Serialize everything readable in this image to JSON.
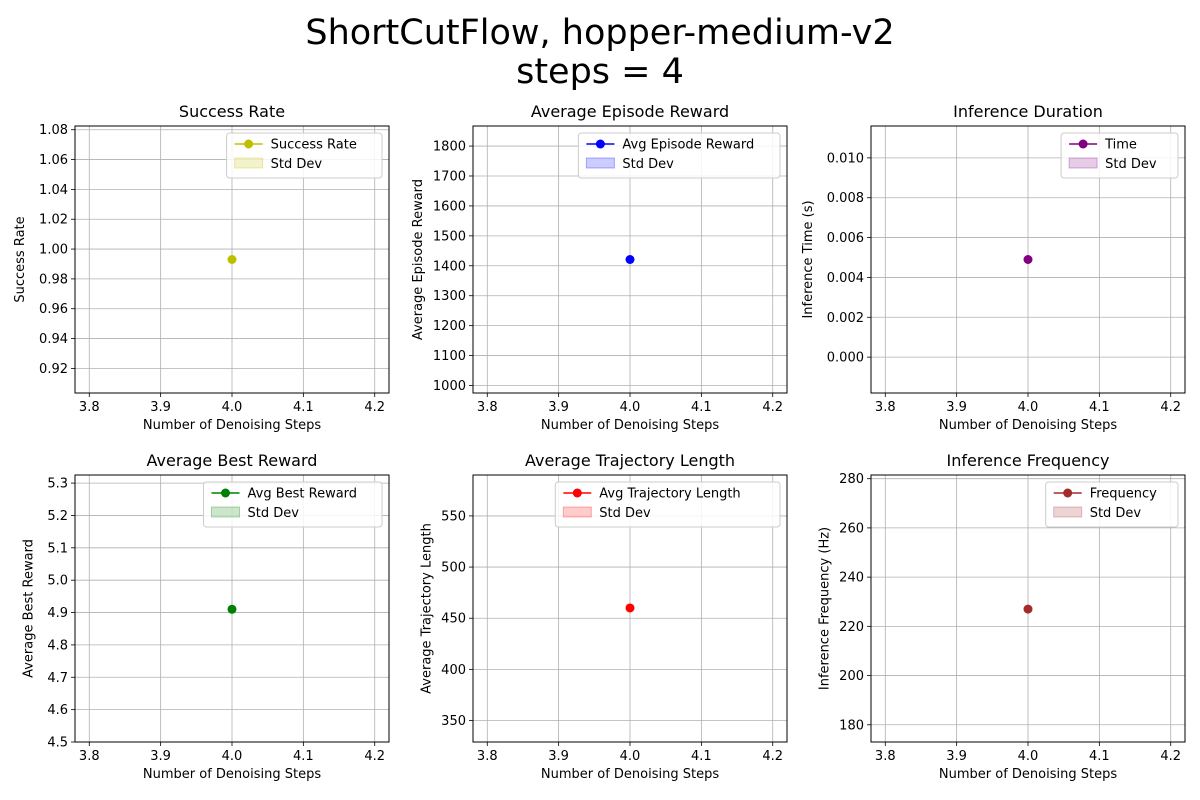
{
  "figure": {
    "title_line1": "ShortCutFlow, hopper-medium-v2",
    "title_line2": "steps = 4"
  },
  "chart_data": [
    {
      "type": "line",
      "title": "Success Rate",
      "xlabel": "Number of Denoising Steps",
      "ylabel": "Success Rate",
      "xlim": [
        3.78,
        4.22
      ],
      "ylim": [
        0.9035,
        1.0825
      ],
      "xticks": [
        3.8,
        3.9,
        4.0,
        4.1,
        4.2
      ],
      "xtick_labels": [
        "3.8",
        "3.9",
        "4.0",
        "4.1",
        "4.2"
      ],
      "yticks": [
        0.92,
        0.94,
        0.96,
        0.98,
        1.0,
        1.02,
        1.04,
        1.06,
        1.08
      ],
      "ytick_labels": [
        "0.92",
        "0.94",
        "0.96",
        "0.98",
        "1.00",
        "1.02",
        "1.04",
        "1.06",
        "1.08"
      ],
      "grid": true,
      "series": [
        {
          "name": "Success Rate",
          "x": [
            4.0
          ],
          "y": [
            0.993
          ],
          "color": "#bfbf00"
        }
      ],
      "std_label": "Std Dev",
      "legend": "top-right"
    },
    {
      "type": "line",
      "title": "Average Episode Reward",
      "xlabel": "Number of Denoising Steps",
      "ylabel": "Average Episode Reward",
      "xlim": [
        3.78,
        4.22
      ],
      "ylim": [
        975,
        1867
      ],
      "xticks": [
        3.8,
        3.9,
        4.0,
        4.1,
        4.2
      ],
      "xtick_labels": [
        "3.8",
        "3.9",
        "4.0",
        "4.1",
        "4.2"
      ],
      "yticks": [
        1000,
        1100,
        1200,
        1300,
        1400,
        1500,
        1600,
        1700,
        1800
      ],
      "ytick_labels": [
        "1000",
        "1100",
        "1200",
        "1300",
        "1400",
        "1500",
        "1600",
        "1700",
        "1800"
      ],
      "grid": true,
      "series": [
        {
          "name": "Avg Episode Reward",
          "x": [
            4.0
          ],
          "y": [
            1421
          ],
          "color": "#0000ff"
        }
      ],
      "std_label": "Std Dev",
      "legend": "top-right"
    },
    {
      "type": "line",
      "title": "Inference Duration",
      "xlabel": "Number of Denoising Steps",
      "ylabel": "Inference Time (s)",
      "xlim": [
        3.78,
        4.22
      ],
      "ylim": [
        -0.0018,
        0.0116
      ],
      "xticks": [
        3.8,
        3.9,
        4.0,
        4.1,
        4.2
      ],
      "xtick_labels": [
        "3.8",
        "3.9",
        "4.0",
        "4.1",
        "4.2"
      ],
      "yticks": [
        0.0,
        0.002,
        0.004,
        0.006,
        0.008,
        0.01
      ],
      "ytick_labels": [
        "0.000",
        "0.002",
        "0.004",
        "0.006",
        "0.008",
        "0.010"
      ],
      "grid": true,
      "series": [
        {
          "name": "Time",
          "x": [
            4.0
          ],
          "y": [
            0.0049
          ],
          "color": "#800080"
        }
      ],
      "std_label": "Std Dev",
      "legend": "top-right"
    },
    {
      "type": "line",
      "title": "Average Best Reward",
      "xlabel": "Number of Denoising Steps",
      "ylabel": "Average Best Reward",
      "xlim": [
        3.78,
        4.22
      ],
      "ylim": [
        4.5,
        5.325
      ],
      "xticks": [
        3.8,
        3.9,
        4.0,
        4.1,
        4.2
      ],
      "xtick_labels": [
        "3.8",
        "3.9",
        "4.0",
        "4.1",
        "4.2"
      ],
      "yticks": [
        4.5,
        4.6,
        4.7,
        4.8,
        4.9,
        5.0,
        5.1,
        5.2,
        5.3
      ],
      "ytick_labels": [
        "4.5",
        "4.6",
        "4.7",
        "4.8",
        "4.9",
        "5.0",
        "5.1",
        "5.2",
        "5.3"
      ],
      "grid": true,
      "series": [
        {
          "name": "Avg Best Reward",
          "x": [
            4.0
          ],
          "y": [
            4.91
          ],
          "color": "#008000"
        }
      ],
      "std_label": "Std Dev",
      "legend": "top-right"
    },
    {
      "type": "line",
      "title": "Average Trajectory Length",
      "xlabel": "Number of Denoising Steps",
      "ylabel": "Average Trajectory Length",
      "xlim": [
        3.78,
        4.22
      ],
      "ylim": [
        329,
        590
      ],
      "xticks": [
        3.8,
        3.9,
        4.0,
        4.1,
        4.2
      ],
      "xtick_labels": [
        "3.8",
        "3.9",
        "4.0",
        "4.1",
        "4.2"
      ],
      "yticks": [
        350,
        400,
        450,
        500,
        550
      ],
      "ytick_labels": [
        "350",
        "400",
        "450",
        "500",
        "550"
      ],
      "grid": true,
      "series": [
        {
          "name": "Avg Trajectory Length",
          "x": [
            4.0
          ],
          "y": [
            460
          ],
          "color": "#ff0000"
        }
      ],
      "std_label": "Std Dev",
      "legend": "top-right"
    },
    {
      "type": "line",
      "title": "Inference Frequency",
      "xlabel": "Number of Denoising Steps",
      "ylabel": "Inference Frequency (Hz)",
      "xlim": [
        3.78,
        4.22
      ],
      "ylim": [
        173,
        281.5
      ],
      "xticks": [
        3.8,
        3.9,
        4.0,
        4.1,
        4.2
      ],
      "xtick_labels": [
        "3.8",
        "3.9",
        "4.0",
        "4.1",
        "4.2"
      ],
      "yticks": [
        180,
        200,
        220,
        240,
        260,
        280
      ],
      "ytick_labels": [
        "180",
        "200",
        "220",
        "240",
        "260",
        "280"
      ],
      "grid": true,
      "series": [
        {
          "name": "Frequency",
          "x": [
            4.0
          ],
          "y": [
            227
          ],
          "color": "#a52a2a"
        }
      ],
      "std_label": "Std Dev",
      "legend": "top-right"
    }
  ]
}
